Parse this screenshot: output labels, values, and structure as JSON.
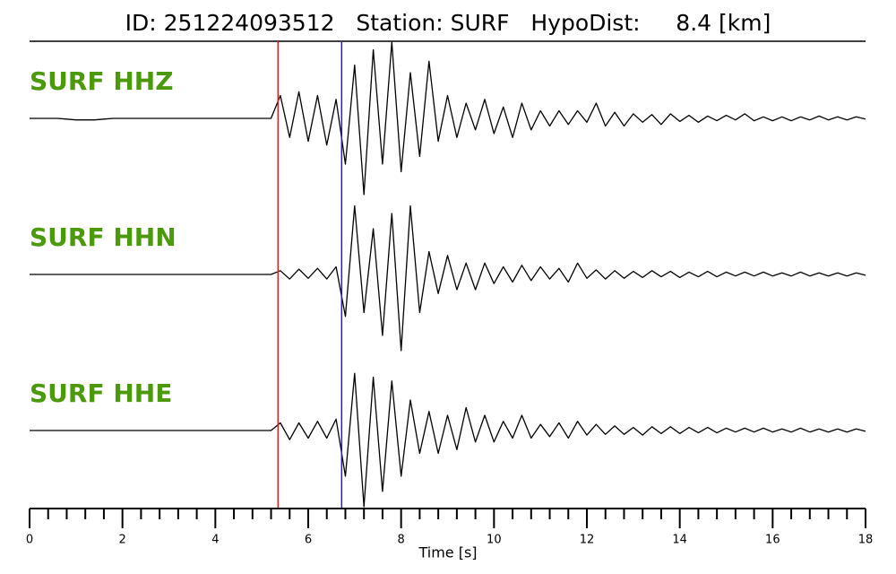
{
  "chart_data": {
    "type": "seismogram",
    "title": "ID: 251224093512   Station: SURF   HypoDist:     8.4 [km]",
    "xlabel": "Time [s]",
    "xlim": [
      0,
      18
    ],
    "xticks": [
      0,
      2,
      4,
      6,
      8,
      10,
      12,
      14,
      16,
      18
    ],
    "xminorticks": [
      0.4,
      0.8,
      1.2,
      1.6,
      2.4,
      2.8,
      3.2,
      3.6,
      4.4,
      4.8,
      5.2,
      5.6,
      6.4,
      6.8,
      7.2,
      7.6,
      8.4,
      8.8,
      9.2,
      9.6,
      10.4,
      10.8,
      11.2,
      11.6,
      12.4,
      12.8,
      13.2,
      13.6,
      14.4,
      14.8,
      15.2,
      15.6,
      16.4,
      16.8,
      17.2,
      17.6
    ],
    "ylim": [
      -1,
      1
    ],
    "label_color": "#4a9a0c",
    "p_pick": {
      "value": 5.35,
      "color": "#e02020"
    },
    "s_pick": {
      "value": 6.72,
      "color": "#1f1fd0"
    },
    "x": [
      0,
      0.2,
      0.4,
      0.6,
      0.8,
      1,
      1.2,
      1.4,
      1.6,
      1.8,
      2,
      2.2,
      2.4,
      2.6,
      2.8,
      3,
      3.2,
      3.4,
      3.6,
      3.8,
      4,
      4.2,
      4.4,
      4.6,
      4.8,
      5,
      5.2,
      5.4,
      5.6,
      5.8,
      6,
      6.2,
      6.4,
      6.6,
      6.8,
      7,
      7.2,
      7.4,
      7.6,
      7.8,
      8,
      8.2,
      8.4,
      8.6,
      8.8,
      9,
      9.2,
      9.4,
      9.6,
      9.8,
      10,
      10.2,
      10.4,
      10.6,
      10.8,
      11,
      11.2,
      11.4,
      11.6,
      11.8,
      12,
      12.2,
      12.4,
      12.6,
      12.8,
      13,
      13.2,
      13.4,
      13.6,
      13.8,
      14,
      14.2,
      14.4,
      14.6,
      14.8,
      15,
      15.2,
      15.4,
      15.6,
      15.8,
      16,
      16.2,
      16.4,
      16.6,
      16.8,
      17,
      17.2,
      17.4,
      17.6,
      17.8,
      18
    ],
    "series": [
      {
        "name": "SURF HHZ",
        "color": "#000000",
        "values": [
          0,
          0,
          0,
          0,
          -0.01,
          -0.02,
          -0.02,
          -0.02,
          -0.01,
          0,
          0,
          0,
          0,
          0,
          0,
          0,
          0,
          0,
          0,
          0,
          0,
          0,
          0,
          0,
          0,
          0,
          0,
          0.3,
          -0.25,
          0.35,
          -0.3,
          0.3,
          -0.35,
          0.25,
          -0.6,
          0.7,
          -1,
          0.9,
          -0.6,
          1,
          -0.7,
          0.6,
          -0.5,
          0.75,
          -0.3,
          0.3,
          -0.25,
          0.2,
          -0.15,
          0.25,
          -0.2,
          0.15,
          -0.25,
          0.2,
          -0.15,
          0.1,
          -0.1,
          0.1,
          -0.08,
          0.1,
          -0.05,
          0.2,
          -0.1,
          0.08,
          -0.1,
          0.06,
          -0.05,
          0.05,
          -0.08,
          0.06,
          -0.04,
          0.04,
          -0.05,
          0.03,
          -0.03,
          0.04,
          -0.02,
          0.06,
          -0.03,
          0.02,
          -0.03,
          0.02,
          -0.03,
          0.02,
          -0.02,
          0.03,
          -0.02,
          0.02,
          -0.02,
          0.02,
          -0.01
        ]
      },
      {
        "name": "SURF HHN",
        "color": "#000000",
        "values": [
          0,
          0,
          0,
          0,
          0,
          0,
          0,
          0,
          0,
          0,
          0,
          0,
          0,
          0,
          0,
          0,
          0,
          0,
          0,
          0,
          0,
          0,
          0,
          0,
          0,
          0,
          0,
          0.05,
          -0.06,
          0.07,
          -0.05,
          0.08,
          -0.06,
          0.1,
          -0.55,
          0.9,
          -0.5,
          0.6,
          -0.8,
          0.8,
          -1,
          0.9,
          -0.5,
          0.3,
          -0.25,
          0.25,
          -0.2,
          0.15,
          -0.2,
          0.15,
          -0.12,
          0.1,
          -0.1,
          0.12,
          -0.08,
          0.1,
          -0.06,
          0.08,
          -0.1,
          0.15,
          -0.05,
          0.06,
          -0.06,
          0.05,
          -0.05,
          0.04,
          -0.04,
          0.05,
          -0.03,
          0.04,
          -0.04,
          0.03,
          -0.03,
          0.04,
          -0.03,
          0.03,
          -0.02,
          0.03,
          -0.02,
          0.03,
          -0.02,
          0.02,
          -0.02,
          0.03,
          -0.02,
          0.02,
          -0.02,
          0.02,
          -0.02,
          0.02,
          -0.01
        ]
      },
      {
        "name": "SURF HHE",
        "color": "#000000",
        "values": [
          0,
          0,
          0,
          0,
          0,
          0,
          0,
          0,
          0,
          0,
          0,
          0,
          0,
          0,
          0,
          0,
          0,
          0,
          0,
          0,
          0,
          0,
          0,
          0,
          0,
          0,
          0,
          0.1,
          -0.12,
          0.1,
          -0.1,
          0.12,
          -0.1,
          0.15,
          -0.6,
          0.75,
          -1,
          0.7,
          -0.8,
          0.65,
          -0.6,
          0.4,
          -0.3,
          0.25,
          -0.3,
          0.2,
          -0.25,
          0.3,
          -0.15,
          0.2,
          -0.15,
          0.12,
          -0.1,
          0.2,
          -0.1,
          0.08,
          -0.08,
          0.1,
          -0.1,
          0.12,
          -0.06,
          0.08,
          -0.05,
          0.06,
          -0.05,
          0.04,
          -0.06,
          0.05,
          -0.04,
          0.05,
          -0.04,
          0.04,
          -0.03,
          0.04,
          -0.03,
          0.03,
          -0.02,
          0.03,
          -0.02,
          0.03,
          -0.02,
          0.02,
          -0.02,
          0.03,
          -0.02,
          0.02,
          -0.02,
          0.02,
          -0.02,
          0.02,
          -0.01
        ]
      }
    ]
  }
}
